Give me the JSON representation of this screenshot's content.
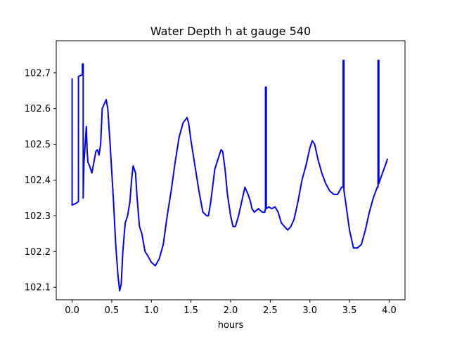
{
  "chart_data": {
    "type": "line",
    "title": "Water Depth h at gauge 540",
    "xlabel": "hours",
    "ylabel": "",
    "xlim": [
      -0.2,
      4.2
    ],
    "ylim": [
      102.065,
      102.79
    ],
    "grid": false,
    "x_ticks": [
      0.0,
      0.5,
      1.0,
      1.5,
      2.0,
      2.5,
      3.0,
      3.5,
      4.0
    ],
    "x_tick_labels": [
      "0.0",
      "0.5",
      "1.0",
      "1.5",
      "2.0",
      "2.5",
      "3.0",
      "3.5",
      "4.0"
    ],
    "y_ticks": [
      102.1,
      102.2,
      102.3,
      102.4,
      102.5,
      102.6,
      102.7
    ],
    "y_tick_labels": [
      "102.1",
      "102.2",
      "102.3",
      "102.4",
      "102.5",
      "102.6",
      "102.7"
    ],
    "series": [
      {
        "color": "#0000ff",
        "x": [
          0.0,
          0.0,
          0.0,
          0.05,
          0.08,
          0.08,
          0.13,
          0.13,
          0.14,
          0.14,
          0.15,
          0.18,
          0.19,
          0.2,
          0.22,
          0.25,
          0.3,
          0.32,
          0.34,
          0.36,
          0.38,
          0.4,
          0.43,
          0.45,
          0.48,
          0.52,
          0.55,
          0.58,
          0.6,
          0.62,
          0.64,
          0.67,
          0.7,
          0.73,
          0.75,
          0.77,
          0.8,
          0.82,
          0.85,
          0.88,
          0.92,
          0.95,
          1.0,
          1.05,
          1.1,
          1.15,
          1.2,
          1.25,
          1.3,
          1.35,
          1.4,
          1.45,
          1.47,
          1.5,
          1.55,
          1.6,
          1.65,
          1.7,
          1.72,
          1.75,
          1.8,
          1.85,
          1.88,
          1.9,
          1.93,
          1.96,
          2.0,
          2.03,
          2.06,
          2.1,
          2.14,
          2.18,
          2.22,
          2.25,
          2.27,
          2.3,
          2.35,
          2.4,
          2.43,
          2.44,
          2.44,
          2.45,
          2.45,
          2.48,
          2.52,
          2.56,
          2.6,
          2.64,
          2.68,
          2.72,
          2.76,
          2.8,
          2.85,
          2.9,
          2.95,
          3.0,
          3.03,
          3.06,
          3.1,
          3.15,
          3.2,
          3.25,
          3.3,
          3.35,
          3.4,
          3.42,
          3.42,
          3.43,
          3.43,
          3.45,
          3.5,
          3.55,
          3.6,
          3.65,
          3.7,
          3.75,
          3.8,
          3.85,
          3.86,
          3.86,
          3.87,
          3.87,
          3.9,
          3.95,
          3.98
        ],
        "y": [
          102.685,
          102.33,
          102.33,
          102.335,
          102.34,
          102.69,
          102.695,
          102.725,
          102.725,
          102.35,
          102.45,
          102.55,
          102.48,
          102.45,
          102.44,
          102.42,
          102.48,
          102.485,
          102.47,
          102.5,
          102.6,
          102.61,
          102.625,
          102.6,
          102.5,
          102.35,
          102.22,
          102.13,
          102.09,
          102.11,
          102.2,
          102.28,
          102.3,
          102.34,
          102.4,
          102.44,
          102.42,
          102.35,
          102.27,
          102.25,
          102.2,
          102.19,
          102.17,
          102.16,
          102.18,
          102.22,
          102.3,
          102.37,
          102.45,
          102.52,
          102.56,
          102.575,
          102.56,
          102.51,
          102.44,
          102.37,
          102.31,
          102.3,
          102.3,
          102.34,
          102.43,
          102.465,
          102.485,
          102.48,
          102.43,
          102.36,
          102.3,
          102.27,
          102.27,
          102.3,
          102.34,
          102.38,
          102.36,
          102.34,
          102.32,
          102.31,
          102.32,
          102.31,
          102.31,
          102.32,
          102.66,
          102.66,
          102.32,
          102.325,
          102.32,
          102.325,
          102.31,
          102.28,
          102.27,
          102.26,
          102.27,
          102.29,
          102.34,
          102.4,
          102.44,
          102.49,
          102.51,
          102.5,
          102.46,
          102.42,
          102.39,
          102.37,
          102.36,
          102.36,
          102.38,
          102.38,
          102.735,
          102.735,
          102.37,
          102.34,
          102.26,
          102.21,
          102.21,
          102.22,
          102.26,
          102.31,
          102.35,
          102.38,
          102.38,
          102.735,
          102.735,
          102.39,
          102.41,
          102.44,
          102.46
        ]
      }
    ]
  }
}
